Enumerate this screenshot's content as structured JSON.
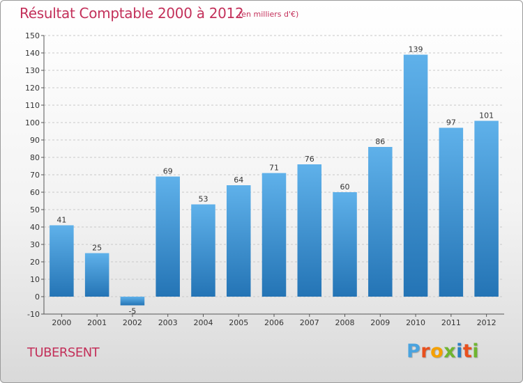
{
  "chart_data": {
    "type": "bar",
    "title": "Résultat Comptable 2000 à 2012",
    "subtitle": "(en milliers d'€)",
    "categories": [
      "2000",
      "2001",
      "2002",
      "2003",
      "2004",
      "2005",
      "2006",
      "2007",
      "2008",
      "2009",
      "2010",
      "2011",
      "2012"
    ],
    "values": [
      41,
      25,
      -5,
      69,
      53,
      64,
      71,
      76,
      60,
      86,
      139,
      97,
      101
    ],
    "ylim": [
      -10,
      150
    ],
    "yticks": [
      -10,
      0,
      10,
      20,
      30,
      40,
      50,
      60,
      70,
      80,
      90,
      100,
      110,
      120,
      130,
      140,
      150
    ],
    "grid": true,
    "xlabel": "",
    "ylabel": ""
  },
  "footer": {
    "commune": "TUBERSENT"
  },
  "logo": {
    "letters": [
      "P",
      "r",
      "o",
      "x",
      "i",
      "t",
      "i"
    ],
    "colors": [
      "#4aa3df",
      "#e8501e",
      "#f5a000",
      "#6fb531",
      "#2b7fc4",
      "#e8501e",
      "#6fb531"
    ]
  },
  "colors": {
    "bar_light": "#5fb1ea",
    "bar_dark": "#2474b5",
    "accent": "#c3305a"
  }
}
